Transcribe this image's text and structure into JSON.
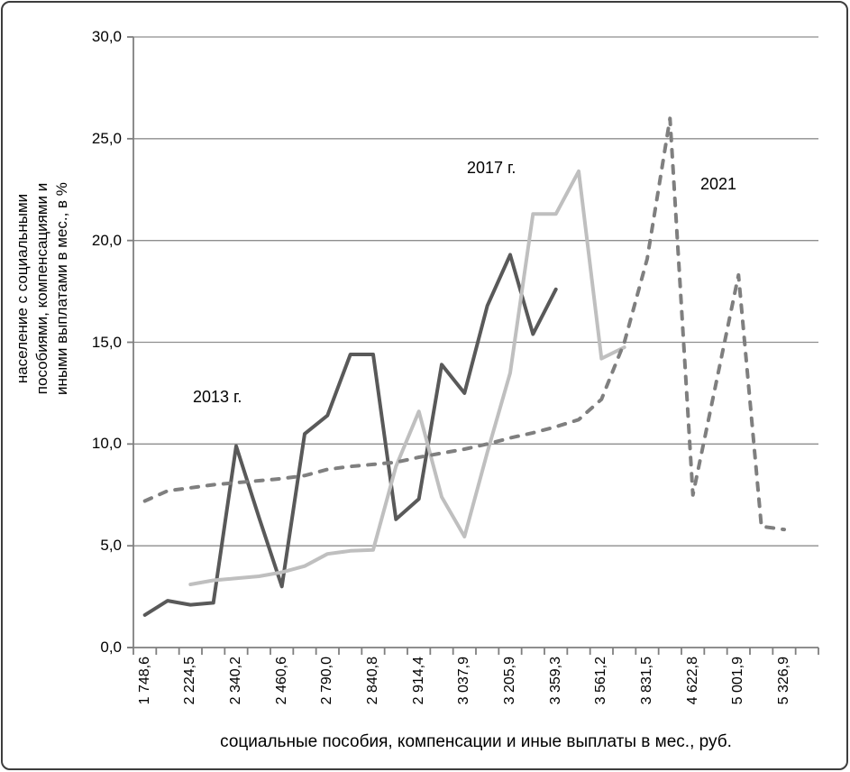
{
  "figure": {
    "y_axis_title_lines": [
      "население с социальными",
      "пособиями, компенсациями и",
      "иными выплатами в мес., в %"
    ],
    "x_axis_title": "социальные пособия, компенсации и иные выплаты в мес., руб."
  },
  "chart_data": {
    "type": "line",
    "title": "",
    "xlabel": "социальные пособия, компенсации и иные выплаты в мес., руб.",
    "ylabel": "население с социальными пособиями, компенсациями и иными выплатами в мес., в %",
    "ylim": [
      0,
      30
    ],
    "y_tick_step": 5,
    "y_tick_labels": [
      "30,0",
      "25,0",
      "20,0",
      "15,0",
      "10,0",
      "5,0",
      "0,0"
    ],
    "categories_count": 30,
    "x_tick_labels": [
      "1 748,6",
      "2 224,5",
      "2 340,2",
      "2 460,6",
      "2 790,0",
      "2 840,8",
      "2 914,4",
      "3 037,9",
      "3 205,9",
      "3 359,3",
      "3 561,2",
      "3 831,5",
      "4 622,8",
      "5 001,9",
      "5 326,9"
    ],
    "x_label_start_category": 1,
    "x_label_every": 2,
    "grid": "horizontal",
    "legend_position": "inline-annotations",
    "series": [
      {
        "name": "2013 г.",
        "color": "#595959",
        "style": "solid",
        "width": 4,
        "start_category": 1,
        "values": [
          1.6,
          2.3,
          2.1,
          2.2,
          9.9,
          6.4,
          3.0,
          10.5,
          11.4,
          14.4,
          14.4,
          6.3,
          7.3,
          13.9,
          12.5,
          16.8,
          19.3,
          15.4,
          17.6
        ]
      },
      {
        "name": "2017 г.",
        "color": "#bfbfbf",
        "style": "solid",
        "width": 4,
        "start_category": 3,
        "values": [
          3.1,
          3.3,
          3.4,
          3.5,
          3.7,
          4.0,
          4.6,
          4.75,
          4.8,
          8.9,
          11.6,
          7.4,
          5.45,
          9.6,
          13.5,
          21.3,
          21.3,
          23.4,
          14.2,
          14.75
        ]
      },
      {
        "name": "2021",
        "color": "#7f7f7f",
        "style": "dashed",
        "width": 4,
        "start_category": 1,
        "values": [
          7.2,
          7.7,
          7.85,
          8.0,
          8.1,
          8.2,
          8.3,
          8.45,
          8.75,
          8.9,
          9.0,
          9.1,
          9.35,
          9.55,
          9.75,
          10.0,
          10.3,
          10.55,
          10.85,
          11.2,
          12.2,
          15.0,
          19.1,
          26.0,
          7.5,
          12.9,
          18.3,
          5.95,
          5.8
        ]
      }
    ],
    "axis_colors": {
      "axis": "#7f7f7f",
      "grid": "#8e8e8e"
    }
  }
}
